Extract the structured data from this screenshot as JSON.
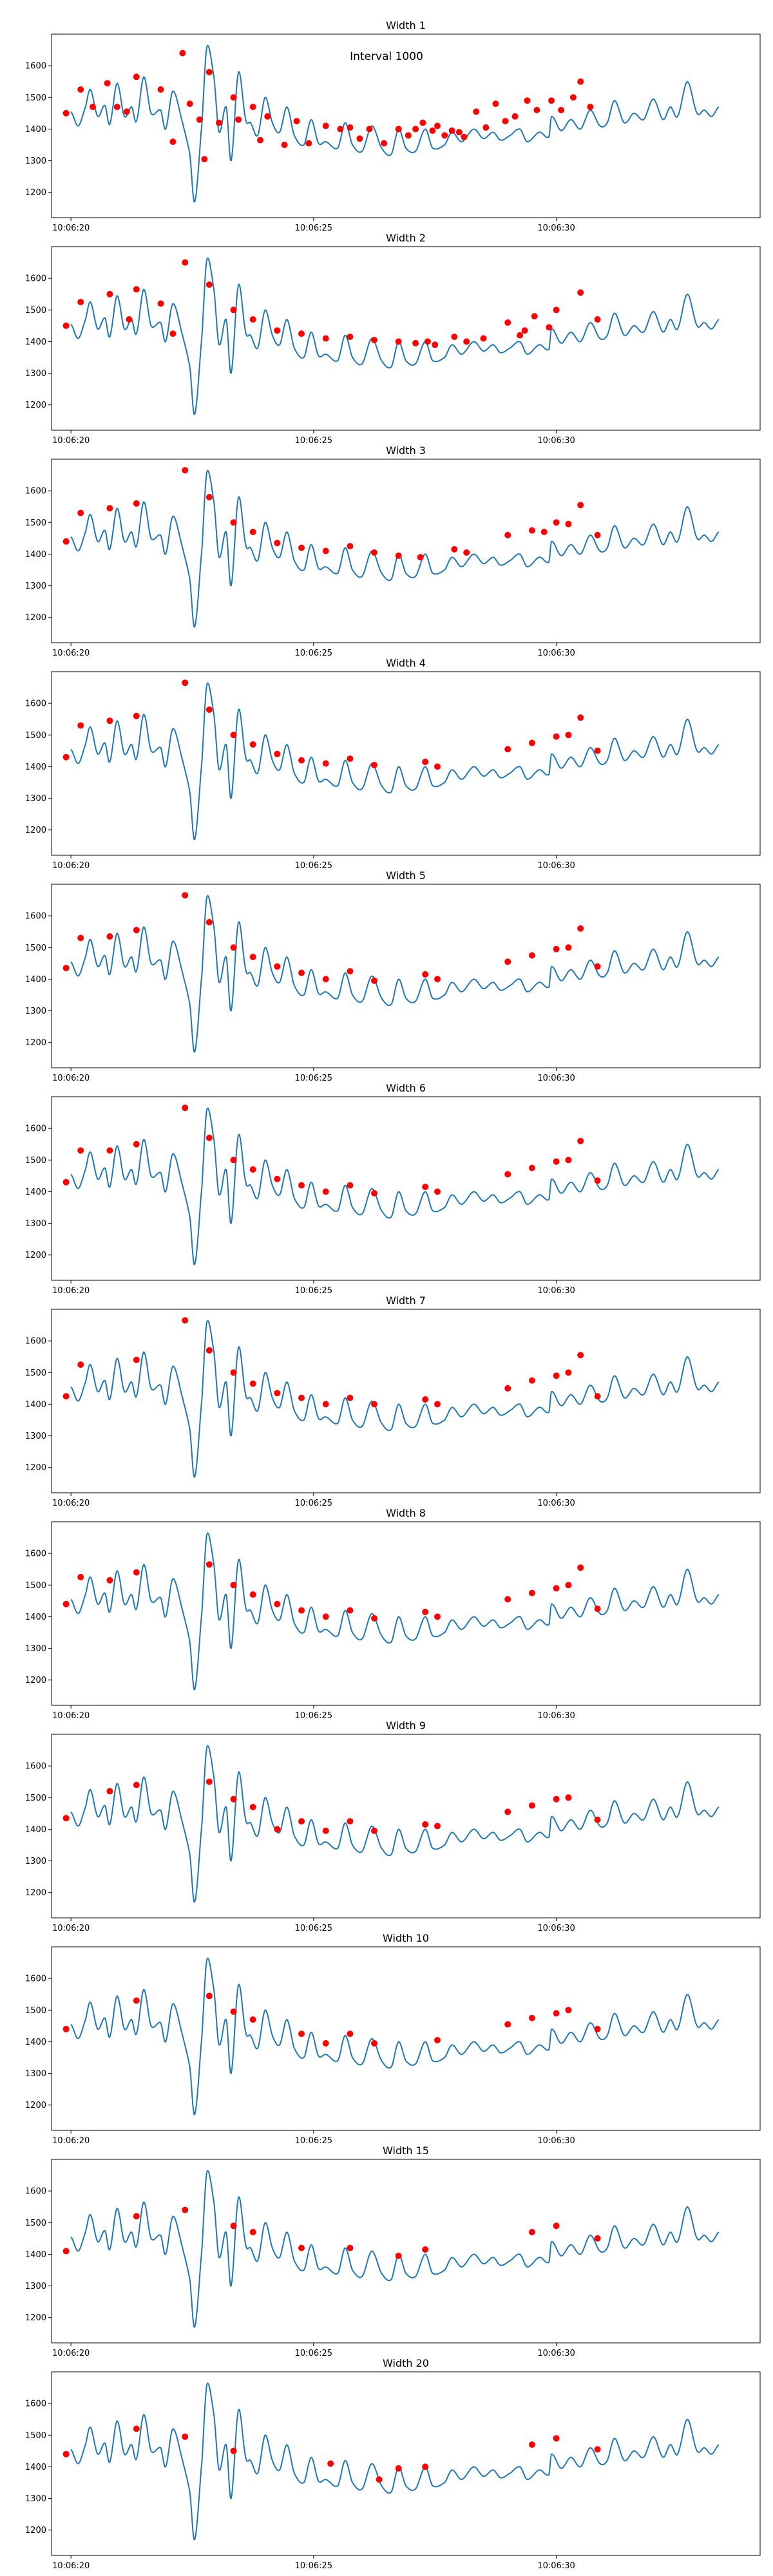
{
  "figure": {
    "annotation": "Interval 1000"
  },
  "signal": {
    "x_start": "10:06:20",
    "x_end": "10:06:33.6",
    "knots": [
      [
        0,
        1455
      ],
      [
        0.15,
        1410
      ],
      [
        0.3,
        1470
      ],
      [
        0.4,
        1525
      ],
      [
        0.55,
        1440
      ],
      [
        0.7,
        1475
      ],
      [
        0.8,
        1415
      ],
      [
        0.95,
        1545
      ],
      [
        1.1,
        1440
      ],
      [
        1.25,
        1470
      ],
      [
        1.35,
        1425
      ],
      [
        1.5,
        1565
      ],
      [
        1.65,
        1450
      ],
      [
        1.85,
        1460
      ],
      [
        1.95,
        1400
      ],
      [
        2.1,
        1520
      ],
      [
        2.3,
        1420
      ],
      [
        2.45,
        1320
      ],
      [
        2.55,
        1170
      ],
      [
        2.7,
        1420
      ],
      [
        2.8,
        1660
      ],
      [
        2.95,
        1560
      ],
      [
        3.05,
        1390
      ],
      [
        3.2,
        1470
      ],
      [
        3.3,
        1300
      ],
      [
        3.45,
        1580
      ],
      [
        3.6,
        1430
      ],
      [
        3.7,
        1420
      ],
      [
        3.85,
        1380
      ],
      [
        4.0,
        1500
      ],
      [
        4.15,
        1420
      ],
      [
        4.3,
        1390
      ],
      [
        4.45,
        1470
      ],
      [
        4.6,
        1380
      ],
      [
        4.8,
        1350
      ],
      [
        4.95,
        1430
      ],
      [
        5.1,
        1355
      ],
      [
        5.25,
        1360
      ],
      [
        5.5,
        1340
      ],
      [
        5.65,
        1420
      ],
      [
        5.8,
        1350
      ],
      [
        6.0,
        1330
      ],
      [
        6.2,
        1410
      ],
      [
        6.4,
        1340
      ],
      [
        6.6,
        1320
      ],
      [
        6.75,
        1400
      ],
      [
        6.9,
        1340
      ],
      [
        7.1,
        1330
      ],
      [
        7.3,
        1400
      ],
      [
        7.45,
        1340
      ],
      [
        7.7,
        1350
      ],
      [
        7.85,
        1390
      ],
      [
        8.05,
        1360
      ],
      [
        8.3,
        1400
      ],
      [
        8.5,
        1370
      ],
      [
        8.7,
        1390
      ],
      [
        8.85,
        1365
      ],
      [
        9.05,
        1380
      ],
      [
        9.25,
        1400
      ],
      [
        9.4,
        1360
      ],
      [
        9.65,
        1390
      ],
      [
        9.85,
        1375
      ],
      [
        9.9,
        1440
      ],
      [
        10.1,
        1395
      ],
      [
        10.3,
        1430
      ],
      [
        10.5,
        1400
      ],
      [
        10.7,
        1460
      ],
      [
        10.9,
        1410
      ],
      [
        11.05,
        1420
      ],
      [
        11.2,
        1490
      ],
      [
        11.4,
        1420
      ],
      [
        11.6,
        1450
      ],
      [
        11.8,
        1430
      ],
      [
        12.0,
        1495
      ],
      [
        12.2,
        1430
      ],
      [
        12.35,
        1470
      ],
      [
        12.5,
        1440
      ],
      [
        12.7,
        1550
      ],
      [
        12.9,
        1450
      ],
      [
        13.05,
        1460
      ],
      [
        13.2,
        1440
      ],
      [
        13.35,
        1470
      ]
    ]
  },
  "panels": [
    {
      "title": "Width 1",
      "peaks": [
        [
          -0.1,
          1450
        ],
        [
          0.2,
          1525
        ],
        [
          0.45,
          1470
        ],
        [
          0.75,
          1545
        ],
        [
          0.95,
          1470
        ],
        [
          1.15,
          1455
        ],
        [
          1.35,
          1565
        ],
        [
          1.85,
          1525
        ],
        [
          2.1,
          1360
        ],
        [
          2.3,
          1640
        ],
        [
          2.45,
          1480
        ],
        [
          2.65,
          1430
        ],
        [
          2.75,
          1305
        ],
        [
          2.85,
          1580
        ],
        [
          3.05,
          1420
        ],
        [
          3.35,
          1500
        ],
        [
          3.45,
          1430
        ],
        [
          3.75,
          1470
        ],
        [
          3.9,
          1365
        ],
        [
          4.05,
          1440
        ],
        [
          4.4,
          1350
        ],
        [
          4.65,
          1425
        ],
        [
          4.9,
          1355
        ],
        [
          5.25,
          1410
        ],
        [
          5.55,
          1400
        ],
        [
          5.75,
          1405
        ],
        [
          5.95,
          1370
        ],
        [
          6.15,
          1400
        ],
        [
          6.45,
          1355
        ],
        [
          6.75,
          1400
        ],
        [
          6.95,
          1380
        ],
        [
          7.1,
          1400
        ],
        [
          7.25,
          1420
        ],
        [
          7.45,
          1395
        ],
        [
          7.55,
          1410
        ],
        [
          7.7,
          1380
        ],
        [
          7.85,
          1395
        ],
        [
          8.0,
          1390
        ],
        [
          8.1,
          1375
        ],
        [
          8.35,
          1455
        ],
        [
          8.55,
          1405
        ],
        [
          8.75,
          1480
        ],
        [
          8.95,
          1425
        ],
        [
          9.15,
          1440
        ],
        [
          9.4,
          1490
        ],
        [
          9.6,
          1460
        ],
        [
          9.9,
          1490
        ],
        [
          10.1,
          1460
        ],
        [
          10.35,
          1500
        ],
        [
          10.5,
          1550
        ],
        [
          10.7,
          1470
        ]
      ]
    },
    {
      "title": "Width 2",
      "peaks": [
        [
          -0.1,
          1450
        ],
        [
          0.2,
          1525
        ],
        [
          0.8,
          1550
        ],
        [
          1.2,
          1470
        ],
        [
          1.35,
          1565
        ],
        [
          1.85,
          1520
        ],
        [
          2.1,
          1425
        ],
        [
          2.35,
          1650
        ],
        [
          2.85,
          1580
        ],
        [
          3.35,
          1500
        ],
        [
          3.75,
          1470
        ],
        [
          4.25,
          1435
        ],
        [
          4.75,
          1425
        ],
        [
          5.25,
          1410
        ],
        [
          5.75,
          1415
        ],
        [
          6.25,
          1405
        ],
        [
          6.75,
          1400
        ],
        [
          7.1,
          1395
        ],
        [
          7.35,
          1400
        ],
        [
          7.5,
          1390
        ],
        [
          7.9,
          1415
        ],
        [
          8.15,
          1400
        ],
        [
          8.5,
          1410
        ],
        [
          9.0,
          1460
        ],
        [
          9.25,
          1420
        ],
        [
          9.35,
          1435
        ],
        [
          9.55,
          1480
        ],
        [
          9.85,
          1445
        ],
        [
          10.0,
          1500
        ],
        [
          10.5,
          1555
        ],
        [
          10.85,
          1470
        ]
      ]
    },
    {
      "title": "Width 3",
      "peaks": [
        [
          -0.1,
          1440
        ],
        [
          0.2,
          1530
        ],
        [
          0.8,
          1545
        ],
        [
          1.35,
          1560
        ],
        [
          2.35,
          1665
        ],
        [
          2.85,
          1580
        ],
        [
          3.35,
          1500
        ],
        [
          3.75,
          1470
        ],
        [
          4.25,
          1435
        ],
        [
          4.75,
          1420
        ],
        [
          5.25,
          1410
        ],
        [
          5.75,
          1425
        ],
        [
          6.25,
          1405
        ],
        [
          6.75,
          1395
        ],
        [
          7.2,
          1390
        ],
        [
          7.9,
          1415
        ],
        [
          8.15,
          1405
        ],
        [
          9.0,
          1460
        ],
        [
          9.5,
          1475
        ],
        [
          9.75,
          1470
        ],
        [
          10.0,
          1500
        ],
        [
          10.25,
          1495
        ],
        [
          10.5,
          1555
        ],
        [
          10.85,
          1460
        ]
      ]
    },
    {
      "title": "Width 4",
      "peaks": [
        [
          -0.1,
          1430
        ],
        [
          0.2,
          1530
        ],
        [
          0.8,
          1545
        ],
        [
          1.35,
          1560
        ],
        [
          2.35,
          1665
        ],
        [
          2.85,
          1580
        ],
        [
          3.35,
          1500
        ],
        [
          3.75,
          1470
        ],
        [
          4.25,
          1440
        ],
        [
          4.75,
          1420
        ],
        [
          5.25,
          1410
        ],
        [
          5.75,
          1425
        ],
        [
          6.25,
          1405
        ],
        [
          7.3,
          1415
        ],
        [
          7.55,
          1400
        ],
        [
          9.0,
          1455
        ],
        [
          9.5,
          1475
        ],
        [
          10.0,
          1495
        ],
        [
          10.25,
          1500
        ],
        [
          10.5,
          1555
        ],
        [
          10.85,
          1450
        ]
      ]
    },
    {
      "title": "Width 5",
      "peaks": [
        [
          -0.1,
          1435
        ],
        [
          0.2,
          1530
        ],
        [
          0.8,
          1535
        ],
        [
          1.35,
          1555
        ],
        [
          2.35,
          1665
        ],
        [
          2.85,
          1580
        ],
        [
          3.35,
          1500
        ],
        [
          3.75,
          1470
        ],
        [
          4.25,
          1440
        ],
        [
          4.75,
          1420
        ],
        [
          5.25,
          1400
        ],
        [
          5.75,
          1425
        ],
        [
          6.25,
          1395
        ],
        [
          7.3,
          1415
        ],
        [
          7.55,
          1400
        ],
        [
          9.0,
          1455
        ],
        [
          9.5,
          1475
        ],
        [
          10.0,
          1495
        ],
        [
          10.25,
          1500
        ],
        [
          10.5,
          1560
        ],
        [
          10.85,
          1440
        ]
      ]
    },
    {
      "title": "Width 6",
      "peaks": [
        [
          -0.1,
          1430
        ],
        [
          0.2,
          1530
        ],
        [
          0.8,
          1530
        ],
        [
          1.35,
          1550
        ],
        [
          2.35,
          1665
        ],
        [
          2.85,
          1570
        ],
        [
          3.35,
          1500
        ],
        [
          3.75,
          1470
        ],
        [
          4.25,
          1440
        ],
        [
          4.75,
          1420
        ],
        [
          5.25,
          1400
        ],
        [
          5.75,
          1420
        ],
        [
          6.25,
          1395
        ],
        [
          7.3,
          1415
        ],
        [
          7.55,
          1400
        ],
        [
          9.0,
          1455
        ],
        [
          9.5,
          1475
        ],
        [
          10.0,
          1495
        ],
        [
          10.25,
          1500
        ],
        [
          10.5,
          1560
        ],
        [
          10.85,
          1435
        ]
      ]
    },
    {
      "title": "Width 7",
      "peaks": [
        [
          -0.1,
          1425
        ],
        [
          0.2,
          1525
        ],
        [
          1.35,
          1540
        ],
        [
          2.35,
          1665
        ],
        [
          2.85,
          1570
        ],
        [
          3.35,
          1500
        ],
        [
          3.75,
          1465
        ],
        [
          4.25,
          1435
        ],
        [
          4.75,
          1420
        ],
        [
          5.25,
          1400
        ],
        [
          5.75,
          1420
        ],
        [
          6.25,
          1400
        ],
        [
          7.3,
          1415
        ],
        [
          7.55,
          1400
        ],
        [
          9.0,
          1450
        ],
        [
          9.5,
          1475
        ],
        [
          10.0,
          1490
        ],
        [
          10.25,
          1500
        ],
        [
          10.5,
          1555
        ],
        [
          10.85,
          1425
        ]
      ]
    },
    {
      "title": "Width 8",
      "peaks": [
        [
          -0.1,
          1440
        ],
        [
          0.2,
          1525
        ],
        [
          0.8,
          1515
        ],
        [
          1.35,
          1540
        ],
        [
          2.85,
          1565
        ],
        [
          3.35,
          1500
        ],
        [
          3.75,
          1470
        ],
        [
          4.25,
          1440
        ],
        [
          4.75,
          1420
        ],
        [
          5.25,
          1400
        ],
        [
          5.75,
          1420
        ],
        [
          6.25,
          1395
        ],
        [
          7.3,
          1415
        ],
        [
          7.55,
          1400
        ],
        [
          9.0,
          1455
        ],
        [
          9.5,
          1475
        ],
        [
          10.0,
          1490
        ],
        [
          10.25,
          1500
        ],
        [
          10.5,
          1555
        ],
        [
          10.85,
          1425
        ]
      ]
    },
    {
      "title": "Width 9",
      "peaks": [
        [
          -0.1,
          1435
        ],
        [
          0.8,
          1520
        ],
        [
          1.35,
          1540
        ],
        [
          2.85,
          1550
        ],
        [
          3.35,
          1495
        ],
        [
          3.75,
          1470
        ],
        [
          4.25,
          1400
        ],
        [
          4.75,
          1425
        ],
        [
          5.25,
          1395
        ],
        [
          5.75,
          1425
        ],
        [
          6.25,
          1395
        ],
        [
          7.3,
          1415
        ],
        [
          7.55,
          1410
        ],
        [
          9.0,
          1455
        ],
        [
          9.5,
          1475
        ],
        [
          10.0,
          1495
        ],
        [
          10.25,
          1500
        ],
        [
          10.85,
          1430
        ]
      ]
    },
    {
      "title": "Width 10",
      "peaks": [
        [
          -0.1,
          1440
        ],
        [
          1.35,
          1530
        ],
        [
          2.85,
          1545
        ],
        [
          3.35,
          1495
        ],
        [
          3.75,
          1470
        ],
        [
          4.75,
          1425
        ],
        [
          5.25,
          1395
        ],
        [
          5.75,
          1425
        ],
        [
          6.25,
          1395
        ],
        [
          7.55,
          1405
        ],
        [
          9.0,
          1455
        ],
        [
          9.5,
          1475
        ],
        [
          10.0,
          1490
        ],
        [
          10.25,
          1500
        ],
        [
          10.85,
          1440
        ]
      ]
    },
    {
      "title": "Width 15",
      "peaks": [
        [
          -0.1,
          1410
        ],
        [
          1.35,
          1520
        ],
        [
          2.35,
          1540
        ],
        [
          3.35,
          1490
        ],
        [
          3.75,
          1470
        ],
        [
          4.75,
          1420
        ],
        [
          5.75,
          1420
        ],
        [
          6.75,
          1395
        ],
        [
          7.3,
          1415
        ],
        [
          9.5,
          1470
        ],
        [
          10.0,
          1490
        ],
        [
          10.85,
          1450
        ]
      ]
    },
    {
      "title": "Width 20",
      "peaks": [
        [
          -0.1,
          1440
        ],
        [
          1.35,
          1520
        ],
        [
          2.35,
          1495
        ],
        [
          3.35,
          1450
        ],
        [
          5.35,
          1410
        ],
        [
          6.35,
          1360
        ],
        [
          6.75,
          1395
        ],
        [
          7.3,
          1400
        ],
        [
          9.5,
          1470
        ],
        [
          10.0,
          1490
        ],
        [
          10.85,
          1455
        ]
      ]
    }
  ],
  "chart_data": {
    "type": "line",
    "charts": 12,
    "xlabel": "",
    "ylabel": "",
    "x_ticks": [
      "10:06:20",
      "10:06:25",
      "10:06:30"
    ],
    "y_ticks": [
      1200,
      1300,
      1400,
      1500,
      1600
    ],
    "ylim": [
      1120,
      1700
    ],
    "xlim": [
      "10:06:19.6",
      "10:06:34.2"
    ],
    "grid": false,
    "legend": "none",
    "colors": {
      "signal": "#1f77b4",
      "peaks": "#ff0000"
    }
  }
}
